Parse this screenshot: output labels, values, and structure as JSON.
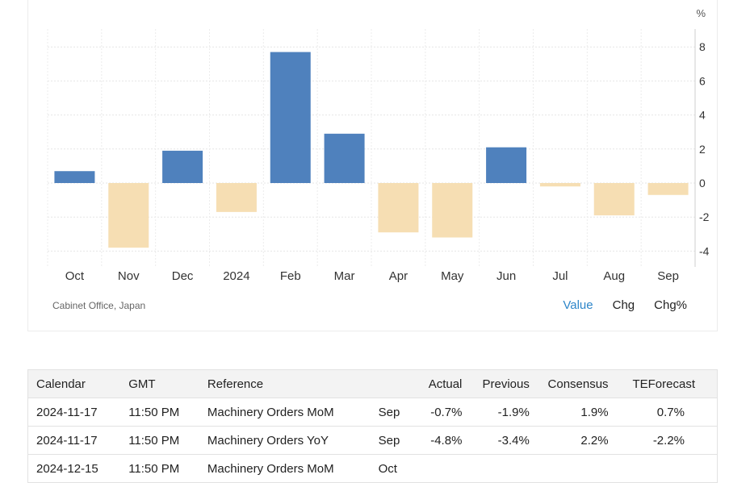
{
  "chart_data": {
    "type": "bar",
    "categories": [
      "Oct",
      "Nov",
      "Dec",
      "2024",
      "Feb",
      "Mar",
      "Apr",
      "May",
      "Jun",
      "Jul",
      "Aug",
      "Sep"
    ],
    "values": [
      0.7,
      -3.8,
      1.9,
      -1.7,
      7.7,
      2.9,
      -2.9,
      -3.2,
      2.1,
      -0.2,
      -1.9,
      -0.7
    ],
    "unit_label": "%",
    "yticks": [
      8,
      6,
      4,
      2,
      0,
      -2,
      -4
    ],
    "ylim": [
      -5,
      9
    ],
    "grid": true,
    "colors": {
      "positive": "#4f81bd",
      "negative": "#f6deb3"
    }
  },
  "source": "Cabinet Office, Japan",
  "tabs": [
    {
      "label": "Value",
      "active": true
    },
    {
      "label": "Chg",
      "active": false
    },
    {
      "label": "Chg%",
      "active": false
    }
  ],
  "calendar": {
    "headers": [
      "Calendar",
      "GMT",
      "Reference",
      "",
      "Actual",
      "Previous",
      "Consensus",
      "TEForecast"
    ],
    "rows": [
      [
        "2024-11-17",
        "11:50 PM",
        "Machinery Orders MoM",
        "Sep",
        "-0.7%",
        "-1.9%",
        "1.9%",
        "0.7%"
      ],
      [
        "2024-11-17",
        "11:50 PM",
        "Machinery Orders YoY",
        "Sep",
        "-4.8%",
        "-3.4%",
        "2.2%",
        "-2.2%"
      ],
      [
        "2024-12-15",
        "11:50 PM",
        "Machinery Orders MoM",
        "Oct",
        "",
        "",
        "",
        ""
      ]
    ]
  }
}
